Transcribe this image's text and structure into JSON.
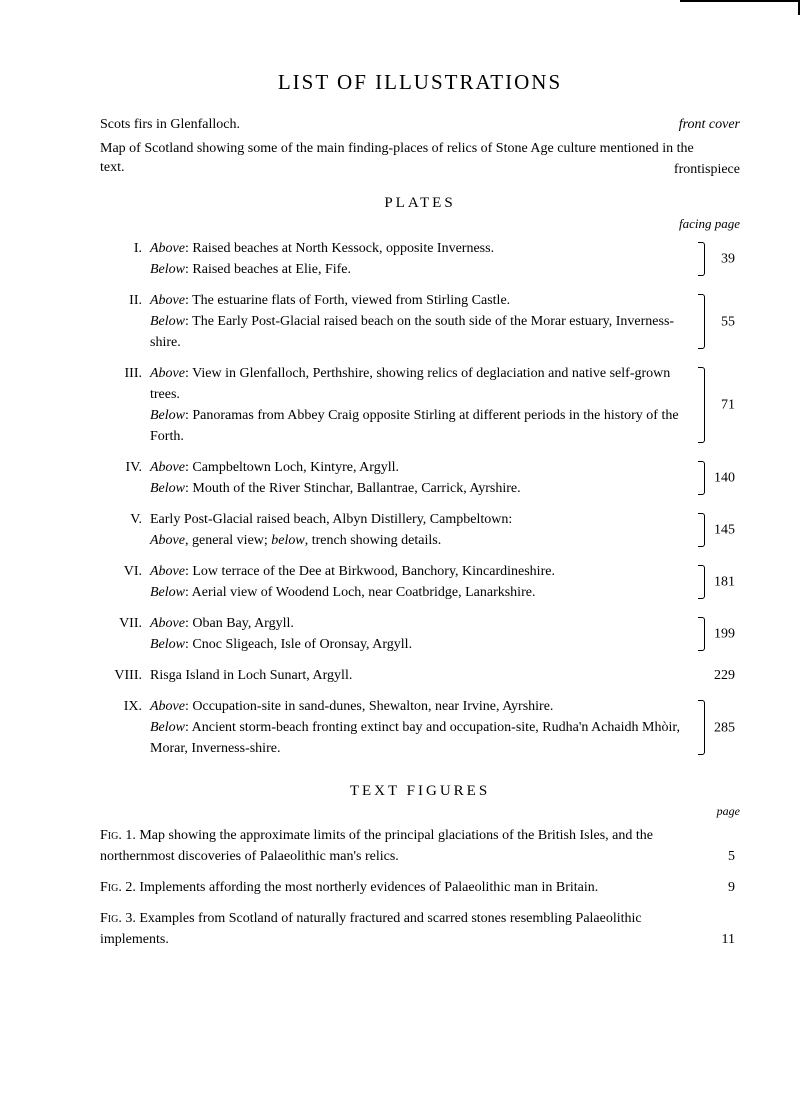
{
  "title": "LIST OF ILLUSTRATIONS",
  "intro": {
    "line1_left": "Scots firs in Glenfalloch.",
    "line1_right": "front cover",
    "line2": "Map of Scotland showing some of the main finding-places of relics of Stone Age culture mentioned in the text.",
    "line2_right": "frontispiece"
  },
  "plates": {
    "heading": "PLATES",
    "facing_label": "facing page",
    "entries": [
      {
        "num": "I.",
        "content": [
          {
            "label": "Above",
            "text": ": Raised beaches at North Kessock, opposite Inverness."
          },
          {
            "label": "Below",
            "text": ": Raised beaches at Elie, Fife."
          }
        ],
        "page": "39"
      },
      {
        "num": "II.",
        "content": [
          {
            "label": "Above",
            "text": ": The estuarine flats of Forth, viewed from Stirling Castle."
          },
          {
            "label": "Below",
            "text": ": The Early Post-Glacial raised beach on the south side of the Morar estuary, Inverness-shire."
          }
        ],
        "page": "55"
      },
      {
        "num": "III.",
        "content": [
          {
            "label": "Above",
            "text": ": View in Glenfalloch, Perthshire, showing relics of deglaciation and native self-grown trees."
          },
          {
            "label": "Below",
            "text": ": Panoramas from Abbey Craig opposite Stirling at different periods in the history of the Forth."
          }
        ],
        "page": "71"
      },
      {
        "num": "IV.",
        "content": [
          {
            "label": "Above",
            "text": ": Campbeltown Loch, Kintyre, Argyll."
          },
          {
            "label": "Below",
            "text": ": Mouth of the River Stinchar, Ballantrae, Carrick, Ayrshire."
          }
        ],
        "page": "140"
      },
      {
        "num": "V.",
        "content": [
          {
            "label": "",
            "text": "Early Post-Glacial raised beach, Albyn Distillery, Campbeltown:"
          },
          {
            "label": "Above",
            "text": ", general view; ",
            "label2": "below",
            "text2": ", trench showing details."
          }
        ],
        "page": "145"
      },
      {
        "num": "VI.",
        "content": [
          {
            "label": "Above",
            "text": ": Low terrace of the Dee at Birkwood, Banchory, Kincardineshire."
          },
          {
            "label": "Below",
            "text": ": Aerial view of Woodend Loch, near Coatbridge, Lanarkshire."
          }
        ],
        "page": "181"
      },
      {
        "num": "VII.",
        "content": [
          {
            "label": "Above",
            "text": ": Oban Bay, Argyll."
          },
          {
            "label": "Below",
            "text": ": Cnoc Sligeach, Isle of Oronsay, Argyll."
          }
        ],
        "page": "199"
      },
      {
        "num": "VIII.",
        "content": [
          {
            "label": "",
            "text": "Risga Island in Loch Sunart, Argyll."
          }
        ],
        "page": "229",
        "no_brace": true
      },
      {
        "num": "IX.",
        "content": [
          {
            "label": "Above",
            "text": ": Occupation-site in sand-dunes, Shewalton, near Irvine, Ayrshire."
          },
          {
            "label": "Below",
            "text": ": Ancient storm-beach fronting extinct bay and occupation-site, Rudha'n Achaidh Mhòir, Morar, Inverness-shire."
          }
        ],
        "page": "285"
      }
    ]
  },
  "text_figures": {
    "heading": "TEXT FIGURES",
    "page_label": "page",
    "entries": [
      {
        "label": "Fig. 1.",
        "text": "Map showing the approximate limits of the principal glaciations of the British Isles, and the northernmost discoveries of Palaeolithic man's relics.",
        "page": "5"
      },
      {
        "label": "Fig. 2.",
        "text": "Implements affording the most northerly evidences of Palaeolithic man in Britain.",
        "page": "9"
      },
      {
        "label": "Fig. 3.",
        "text": "Examples from Scotland of naturally fractured and scarred stones resembling Palaeolithic implements.",
        "page": "11"
      }
    ]
  }
}
